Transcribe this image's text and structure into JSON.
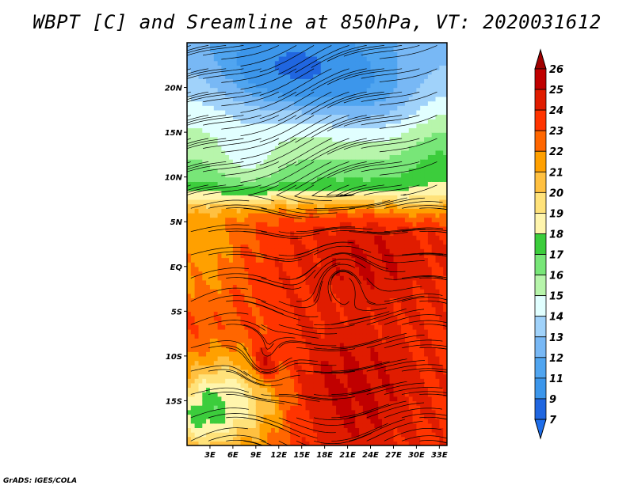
{
  "chart_data": {
    "type": "heatmap",
    "title": "WBPT [C] and Sreamline at 850hPa, VT: 2020031612",
    "variable": "WBPT [C]",
    "overlay": "Streamline",
    "level": "850hPa",
    "valid_time": "2020031612",
    "xlim": [
      0,
      34
    ],
    "ylim": [
      -20,
      25
    ],
    "x_ticks": [
      {
        "value": 3,
        "label": "3E"
      },
      {
        "value": 6,
        "label": "6E"
      },
      {
        "value": 9,
        "label": "9E"
      },
      {
        "value": 12,
        "label": "12E"
      },
      {
        "value": 15,
        "label": "15E"
      },
      {
        "value": 18,
        "label": "18E"
      },
      {
        "value": 21,
        "label": "21E"
      },
      {
        "value": 24,
        "label": "24E"
      },
      {
        "value": 27,
        "label": "27E"
      },
      {
        "value": 30,
        "label": "30E"
      },
      {
        "value": 33,
        "label": "33E"
      }
    ],
    "y_ticks": [
      {
        "value": 20,
        "label": "20N"
      },
      {
        "value": 15,
        "label": "15N"
      },
      {
        "value": 10,
        "label": "10N"
      },
      {
        "value": 5,
        "label": "5N"
      },
      {
        "value": 0,
        "label": "EQ"
      },
      {
        "value": -5,
        "label": "5S"
      },
      {
        "value": -10,
        "label": "10S"
      },
      {
        "value": -15,
        "label": "15S"
      }
    ],
    "colorbar": {
      "labels": [
        "26",
        "25",
        "24",
        "23",
        "22",
        "21",
        "20",
        "19",
        "18",
        "17",
        "16",
        "15",
        "14",
        "13",
        "12",
        "11",
        "9",
        "7"
      ],
      "levels": [
        26,
        25,
        24,
        23,
        22,
        21,
        20,
        19,
        18,
        17,
        16,
        15,
        14,
        13,
        12,
        11,
        9,
        7
      ],
      "top_color": "#a00000",
      "colors": [
        "#c00000",
        "#e01c00",
        "#ff3400",
        "#ff6600",
        "#ffa000",
        "#ffc040",
        "#ffe27a",
        "#fff5ad",
        "#3ccd3c",
        "#78e678",
        "#b7f5ab",
        "#e1ffff",
        "#a0d2fa",
        "#78b8f5",
        "#50a5f0",
        "#3c96eb",
        "#2066e0"
      ],
      "bottom_color": "#1e6eeb"
    }
  },
  "footer": "GrADS: IGES/COLA"
}
